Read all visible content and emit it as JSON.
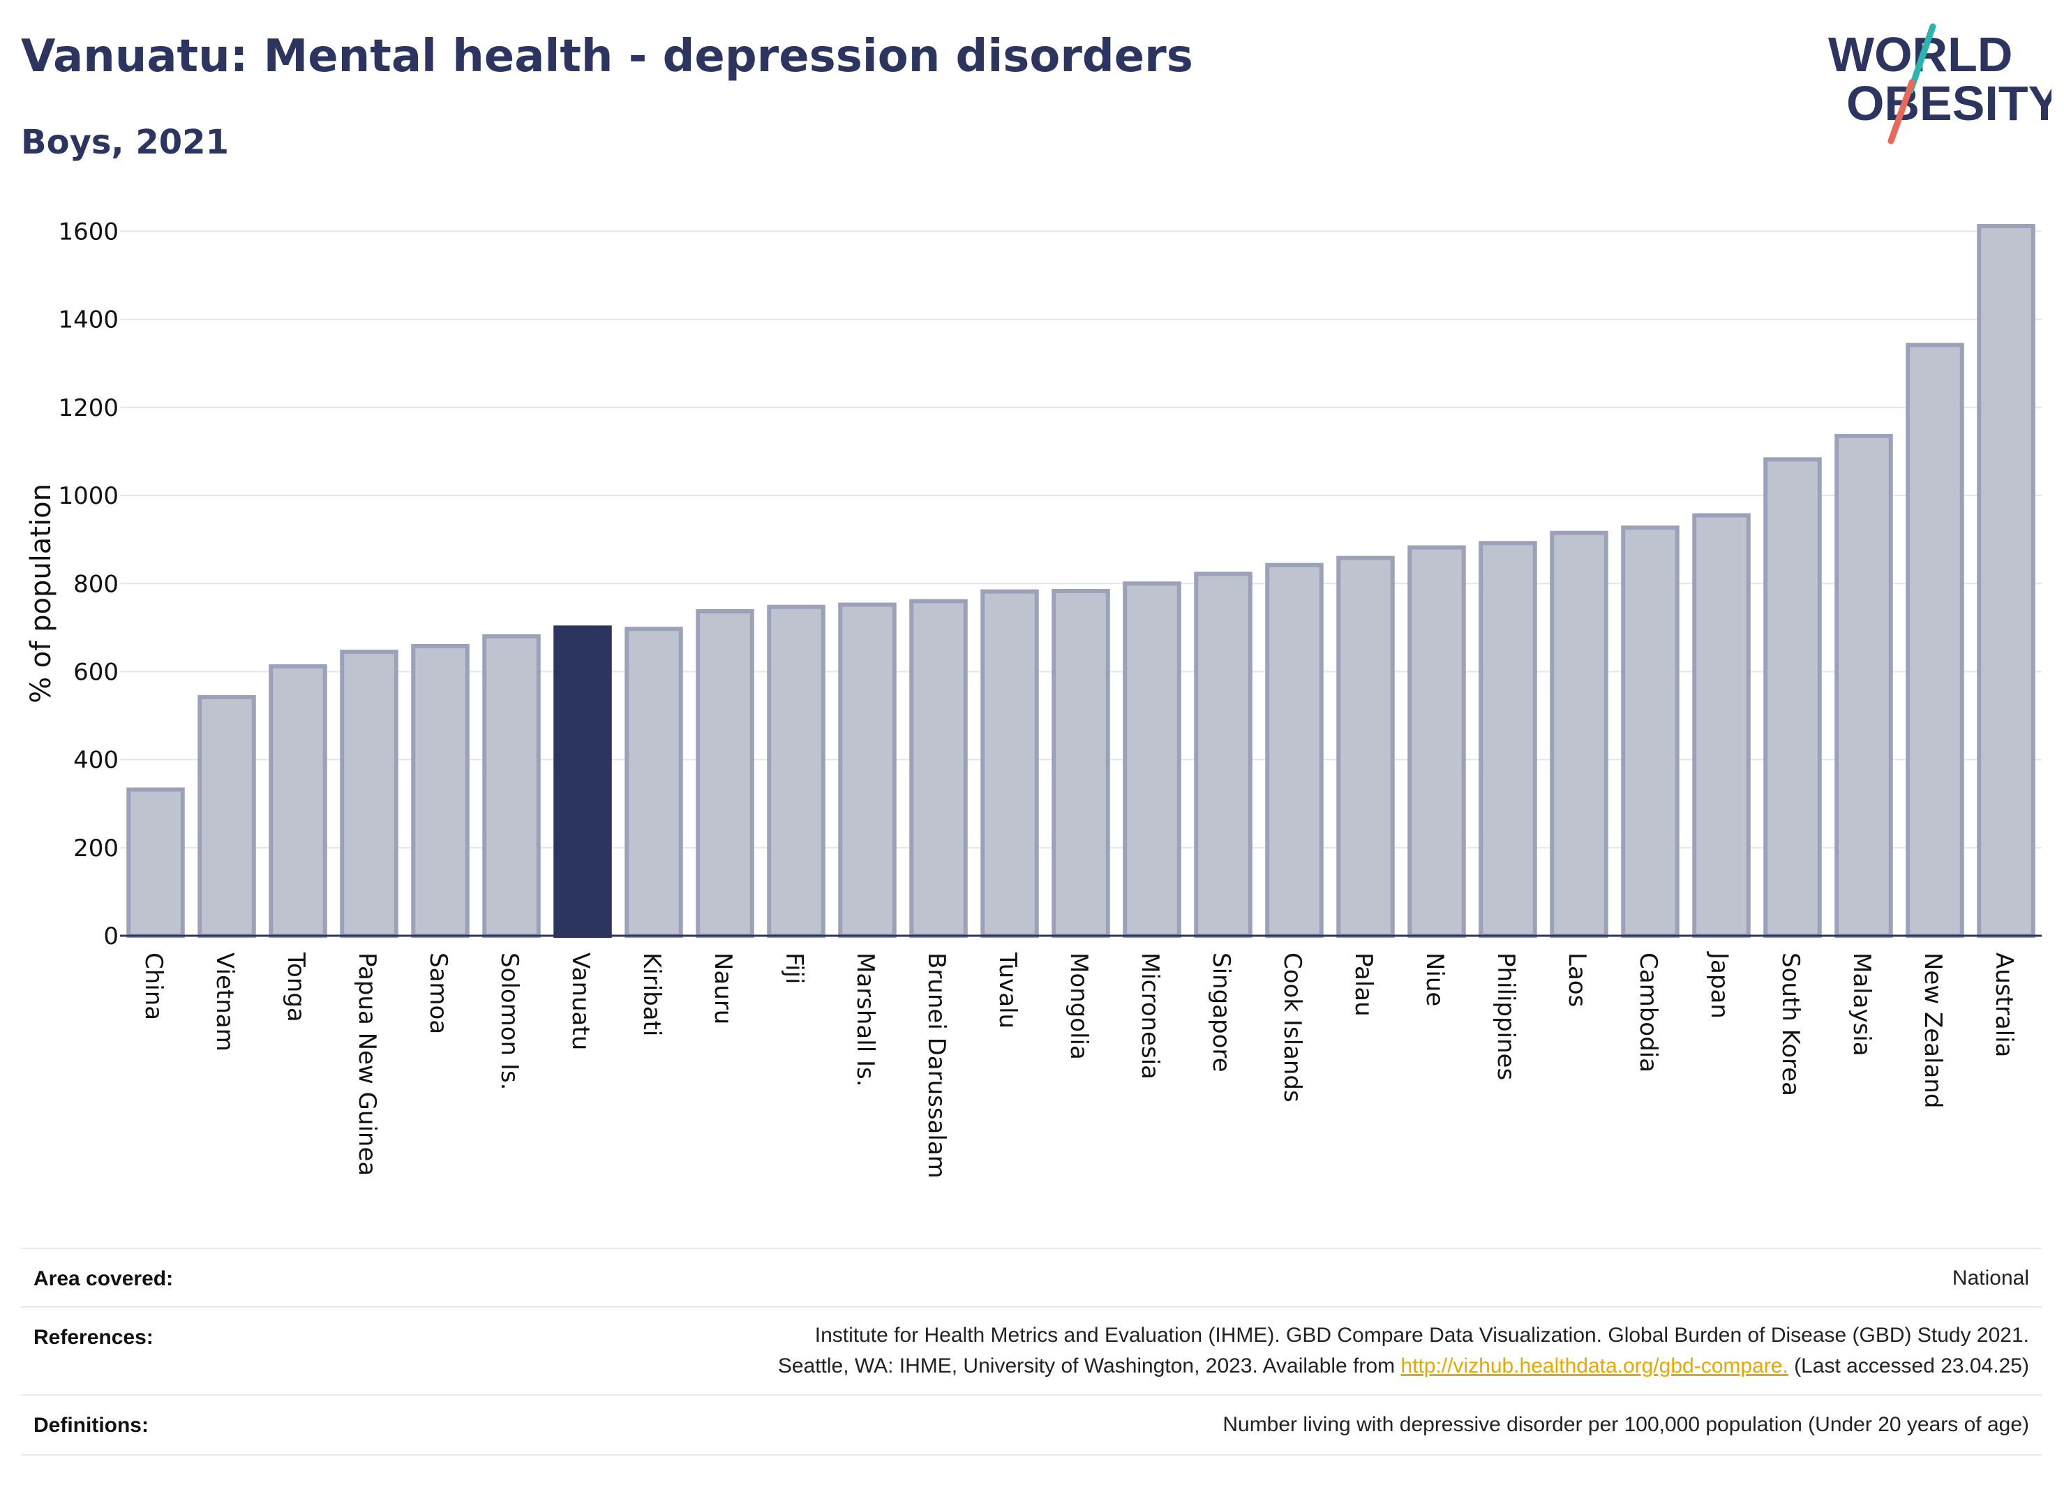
{
  "header": {
    "title": "Vanuatu: Mental health - depression disorders",
    "subtitle": "Boys, 2021"
  },
  "logo": {
    "line1": "WORLD",
    "line2": "OBESITY"
  },
  "colors": {
    "highlight_bar": "#2b3560",
    "other_bar_fill": "#bfc3d0",
    "other_bar_stroke": "#9ba1b8",
    "logo_navy": "#2b3560",
    "logo_teal": "#2bb5b0",
    "logo_coral": "#e8685a",
    "link": "#e8a800"
  },
  "chart_data": {
    "type": "bar",
    "ylabel": "% of population",
    "ylim": [
      0,
      1650
    ],
    "yticks": [
      0,
      200,
      400,
      600,
      800,
      1000,
      1200,
      1400,
      1600
    ],
    "grid": true,
    "highlight": "Vanuatu",
    "categories": [
      "China",
      "Vietnam",
      "Tonga",
      "Papua New Guinea",
      "Samoa",
      "Solomon Is.",
      "Vanuatu",
      "Kiribati",
      "Nauru",
      "Fiji",
      "Marshall Is.",
      "Brunei Darussalam",
      "Tuvalu",
      "Mongolia",
      "Micronesia",
      "Singapore",
      "Cook Islands",
      "Palau",
      "Niue",
      "Philippines",
      "Laos",
      "Cambodia",
      "Japan",
      "South Korea",
      "Malaysia",
      "New Zealand",
      "Australia"
    ],
    "values": [
      332,
      542,
      612,
      645,
      658,
      680,
      700,
      697,
      737,
      747,
      752,
      760,
      782,
      783,
      800,
      822,
      842,
      858,
      882,
      892,
      915,
      927,
      955,
      1082,
      1135,
      1342,
      1612
    ]
  },
  "footer": {
    "area_label": "Area covered:",
    "area_value": "National",
    "references_label": "References:",
    "references_line1": "Institute for Health Metrics and Evaluation (IHME). GBD Compare Data Visualization. Global Burden of Disease (GBD) Study 2021.",
    "references_line2_pre": "Seattle, WA: IHME, University of Washington, 2023. Available from ",
    "references_link": "http://vizhub.healthdata.org/gbd-compare.",
    "references_line2_post": " (Last accessed 23.04.25)",
    "definitions_label": "Definitions:",
    "definitions_value": "Number living with depressive disorder per 100,000 population (Under 20 years of age)"
  }
}
